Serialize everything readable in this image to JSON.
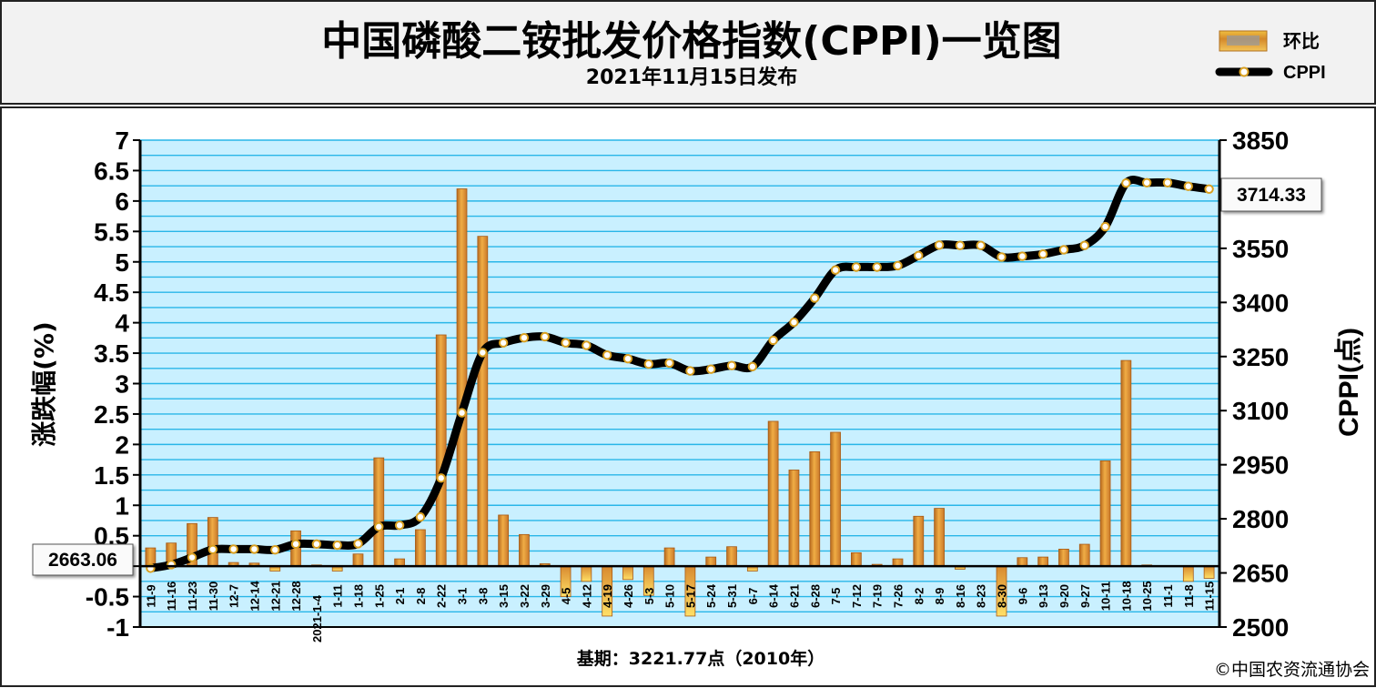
{
  "header": {
    "title": "中国磷酸二铵批发价格指数(CPPI)一览图",
    "subtitle": "2021年11月15日发布"
  },
  "legend": {
    "bar_label": "环比",
    "line_label": "CPPI",
    "bar_color": "#e8a33a",
    "line_color": "#000000"
  },
  "footer": {
    "base_period": "基期：3221.77点（2010年）",
    "copyright": "©中国农资流通协会"
  },
  "callouts": {
    "start_value": "2663.06",
    "end_value": "3714.33"
  },
  "chart_data": {
    "type": "bar",
    "combo_with": "line",
    "ylabel": "涨跌幅(%)",
    "y2label": "CPPI(点)",
    "ylim": [
      -1,
      7
    ],
    "y_ticks": [
      "-1",
      "-0.5",
      "0",
      "0.5",
      "1",
      "1.5",
      "2",
      "2.5",
      "3",
      "3.5",
      "4",
      "4.5",
      "5",
      "5.5",
      "6",
      "6.5",
      "7"
    ],
    "y_ticks_visible": [
      "-1",
      "-0.5",
      "",
      "0.5",
      "1",
      "1.5",
      "2",
      "2.5",
      "3",
      "3.5",
      "4",
      "4.5",
      "5",
      "5.5",
      "6",
      "6.5",
      "7"
    ],
    "y2lim": [
      2500,
      3850
    ],
    "y2_ticks": [
      "2500",
      "2650",
      "2800",
      "2950",
      "3100",
      "3250",
      "3400",
      "3550",
      "3700",
      "3850"
    ],
    "y2_ticks_visible": [
      "2500",
      "2650",
      "2800",
      "2950",
      "3100",
      "3250",
      "3400",
      "3550",
      "",
      "3850"
    ],
    "grid": true,
    "categories": [
      "11-9",
      "11-16",
      "11-23",
      "11-30",
      "12-7",
      "12-14",
      "12-21",
      "12-28",
      "1-4",
      "1-11",
      "1-18",
      "1-25",
      "2-1",
      "2-8",
      "2-22",
      "3-1",
      "3-8",
      "3-15",
      "3-22",
      "3-29",
      "4-5",
      "4-12",
      "4-19",
      "4-26",
      "5-3",
      "5-10",
      "5-17",
      "5-24",
      "5-31",
      "6-7",
      "6-14",
      "6-21",
      "6-28",
      "7-5",
      "7-12",
      "7-19",
      "7-26",
      "8-2",
      "8-9",
      "8-16",
      "8-23",
      "8-30",
      "9-6",
      "9-13",
      "9-20",
      "9-27",
      "10-11",
      "10-18",
      "10-25",
      "11-1",
      "11-8",
      "11-15"
    ],
    "x_tick_labels": [
      "11-9",
      "11-16",
      "11-23",
      "11-30",
      "12-7",
      "12-14",
      "12-21",
      "12-28",
      "2021-1-4",
      "1-11",
      "1-18",
      "1-25",
      "2-1",
      "2-8",
      "2-22",
      "3-1",
      "3-8",
      "3-15",
      "3-22",
      "3-29",
      "4-5",
      "4-12",
      "4-19",
      "4-26",
      "5-3",
      "5-10",
      "5-17",
      "5-24",
      "5-31",
      "6-7",
      "6-14",
      "6-21",
      "6-28",
      "7-5",
      "7-12",
      "7-19",
      "7-26",
      "8-2",
      "8-9",
      "8-16",
      "8-23",
      "8-30",
      "9-6",
      "9-13",
      "9-20",
      "9-27",
      "10-11",
      "10-18",
      "10-25",
      "11-1",
      "11-8",
      "11-15"
    ],
    "series": [
      {
        "name": "环比",
        "type": "bar",
        "axis": "left",
        "values": [
          0.3,
          0.38,
          0.7,
          0.8,
          0.06,
          0.05,
          -0.08,
          0.58,
          0.02,
          -0.08,
          0.2,
          1.78,
          0.12,
          0.6,
          3.8,
          6.2,
          5.42,
          0.84,
          0.52,
          0.04,
          -0.5,
          -0.25,
          -0.82,
          -0.22,
          -0.48,
          0.3,
          -0.82,
          0.15,
          0.32,
          -0.08,
          2.38,
          1.58,
          1.88,
          2.2,
          0.22,
          0.03,
          0.12,
          0.82,
          0.95,
          -0.05,
          0.0,
          -0.82,
          0.14,
          0.15,
          0.28,
          0.36,
          1.73,
          3.38,
          0.02,
          0.0,
          -0.25,
          -0.2
        ]
      },
      {
        "name": "CPPI",
        "type": "line",
        "axis": "right",
        "values": [
          2663.06,
          2673,
          2693,
          2715,
          2716,
          2716,
          2714,
          2730,
          2730,
          2727,
          2731,
          2778,
          2782,
          2805,
          2913,
          3094,
          3261,
          3288,
          3302,
          3305,
          3288,
          3281,
          3254,
          3244,
          3229,
          3232,
          3210,
          3215,
          3225,
          3222,
          3295,
          3345,
          3412,
          3490,
          3498,
          3498,
          3502,
          3530,
          3559,
          3558,
          3558,
          3526,
          3528,
          3534,
          3546,
          3558,
          3610,
          3731,
          3732,
          3732,
          3722,
          3714.33
        ]
      }
    ]
  }
}
